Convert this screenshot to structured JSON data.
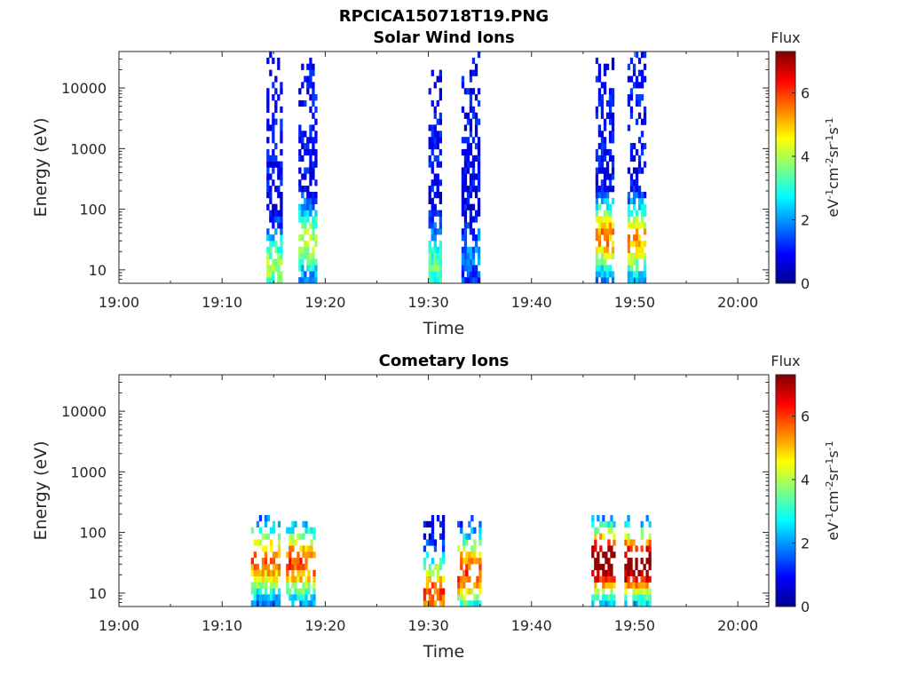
{
  "figure": {
    "title": "RPCICA150718T19.PNG"
  },
  "chart_data": [
    {
      "type": "heatmap",
      "title": "Solar Wind Ions",
      "xlabel": "Time",
      "ylabel": "Energy (eV)",
      "x_ticks": [
        "19:00",
        "19:10",
        "19:20",
        "19:30",
        "19:40",
        "19:50",
        "20:00"
      ],
      "x_range_min": [
        0,
        63
      ],
      "y_scale": "log",
      "y_ticks": [
        "10",
        "100",
        "1000",
        "10000"
      ],
      "y_range": [
        6,
        40000
      ],
      "colorbar": {
        "label": "Flux",
        "units": "eV-1cm-2sr-1s-1",
        "ticks": [
          "0",
          "2",
          "4",
          "6"
        ],
        "range": [
          0,
          7.3
        ],
        "colormap": "jet"
      },
      "bursts": [
        {
          "t_min": 14.3,
          "t_max": 15.6,
          "e_min": 6,
          "e_max": 38000,
          "peak_flux": 3.2,
          "peak_energy": 12
        },
        {
          "t_min": 17.4,
          "t_max": 19.0,
          "e_min": 6,
          "e_max": 30000,
          "peak_flux": 3.6,
          "peak_energy": 30
        },
        {
          "t_min": 30.0,
          "t_max": 31.3,
          "e_min": 6,
          "e_max": 28000,
          "peak_flux": 2.8,
          "peak_energy": 12
        },
        {
          "t_min": 33.2,
          "t_max": 35.0,
          "e_min": 6,
          "e_max": 38000,
          "peak_flux": 1.2,
          "peak_energy": 18
        },
        {
          "t_min": 46.2,
          "t_max": 47.9,
          "e_min": 6,
          "e_max": 30000,
          "peak_flux": 4.8,
          "peak_energy": 35
        },
        {
          "t_min": 49.3,
          "t_max": 50.9,
          "e_min": 6,
          "e_max": 38000,
          "peak_flux": 4.6,
          "peak_energy": 30
        }
      ]
    },
    {
      "type": "heatmap",
      "title": "Cometary Ions",
      "xlabel": "Time",
      "ylabel": "Energy (eV)",
      "x_ticks": [
        "19:00",
        "19:10",
        "19:20",
        "19:30",
        "19:40",
        "19:50",
        "20:00"
      ],
      "x_range_min": [
        0,
        63
      ],
      "y_scale": "log",
      "y_ticks": [
        "10",
        "100",
        "1000",
        "10000"
      ],
      "y_range": [
        6,
        40000
      ],
      "colorbar": {
        "label": "Flux",
        "units": "eV-1cm-2sr-1s-1",
        "ticks": [
          "0",
          "2",
          "4",
          "6"
        ],
        "range": [
          0,
          7.3
        ],
        "colormap": "jet"
      },
      "bursts": [
        {
          "t_min": 12.8,
          "t_max": 15.6,
          "e_min": 6,
          "e_max": 180,
          "peak_flux": 5.0,
          "peak_energy": 35
        },
        {
          "t_min": 16.2,
          "t_max": 19.0,
          "e_min": 6,
          "e_max": 160,
          "peak_flux": 5.3,
          "peak_energy": 32
        },
        {
          "t_min": 29.5,
          "t_max": 31.5,
          "e_min": 6,
          "e_max": 200,
          "peak_flux": 5.2,
          "peak_energy": 10
        },
        {
          "t_min": 32.8,
          "t_max": 35.0,
          "e_min": 6,
          "e_max": 210,
          "peak_flux": 5.4,
          "peak_energy": 22
        },
        {
          "t_min": 45.8,
          "t_max": 48.1,
          "e_min": 6,
          "e_max": 210,
          "peak_flux": 7.2,
          "peak_energy": 33
        },
        {
          "t_min": 49.0,
          "t_max": 51.4,
          "e_min": 6,
          "e_max": 180,
          "peak_flux": 7.0,
          "peak_energy": 30
        }
      ]
    }
  ]
}
